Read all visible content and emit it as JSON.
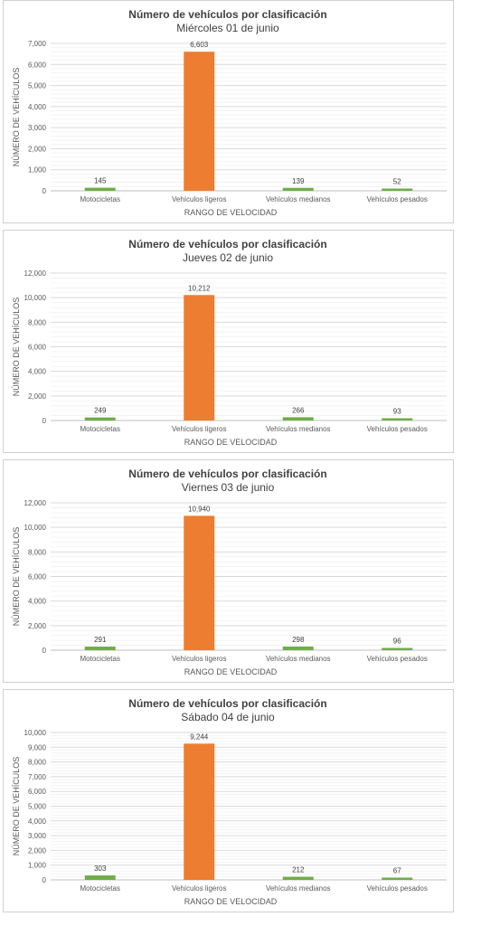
{
  "chart_data": [
    {
      "type": "bar",
      "title": "Número de vehículos por clasificación",
      "subtitle": "Miércoles 01 de junio",
      "xlabel": "RANGO DE VELOCIDAD",
      "ylabel": "NÚMERO DE VEHÍCULOS",
      "categories": [
        "Motocicletas",
        "Vehículos ligeros",
        "Vehículos medianos",
        "Vehículos pesados"
      ],
      "values": [
        145,
        6603,
        139,
        52
      ],
      "value_labels": [
        "145",
        "6,603",
        "139",
        "52"
      ],
      "colors": [
        "#70ad47",
        "#ed7d31",
        "#70ad47",
        "#70ad47"
      ],
      "ylim": [
        0,
        7000
      ],
      "yticks": [
        0,
        1000,
        2000,
        3000,
        4000,
        5000,
        6000,
        7000
      ],
      "ytick_labels": [
        "0",
        "1,000",
        "2,000",
        "3,000",
        "4,000",
        "5,000",
        "6,000",
        "7,000"
      ],
      "grid": true,
      "legend": "none"
    },
    {
      "type": "bar",
      "title": "Número de vehículos por clasificación",
      "subtitle": "Jueves 02 de junio",
      "xlabel": "RANGO DE VELOCIDAD",
      "ylabel": "NÚMERO DE VEHÍCULOS",
      "categories": [
        "Motocicletas",
        "Vehículos ligeros",
        "Vehículos medianos",
        "Vehículos pesados"
      ],
      "values": [
        249,
        10212,
        266,
        93
      ],
      "value_labels": [
        "249",
        "10,212",
        "266",
        "93"
      ],
      "colors": [
        "#70ad47",
        "#ed7d31",
        "#70ad47",
        "#70ad47"
      ],
      "ylim": [
        0,
        12000
      ],
      "yticks": [
        0,
        2000,
        4000,
        6000,
        8000,
        10000,
        12000
      ],
      "ytick_labels": [
        "0",
        "2,000",
        "4,000",
        "6,000",
        "8,000",
        "10,000",
        "12,000"
      ],
      "grid": true,
      "legend": "none"
    },
    {
      "type": "bar",
      "title": "Número de vehículos por clasificación",
      "subtitle": "Viernes 03 de junio",
      "xlabel": "RANGO DE VELOCIDAD",
      "ylabel": "NÚMERO DE VEHÍCULOS",
      "categories": [
        "Motocicletas",
        "Vehículos ligeros",
        "Vehículos medianos",
        "Vehículos pesados"
      ],
      "values": [
        291,
        10940,
        298,
        96
      ],
      "value_labels": [
        "291",
        "10,940",
        "298",
        "96"
      ],
      "colors": [
        "#70ad47",
        "#ed7d31",
        "#70ad47",
        "#70ad47"
      ],
      "ylim": [
        0,
        12000
      ],
      "yticks": [
        0,
        2000,
        4000,
        6000,
        8000,
        10000,
        12000
      ],
      "ytick_labels": [
        "0",
        "2,000",
        "4,000",
        "6,000",
        "8,000",
        "10,000",
        "12,000"
      ],
      "grid": true,
      "legend": "none"
    },
    {
      "type": "bar",
      "title": "Número de vehículos por clasificación",
      "subtitle": "Sábado 04 de junio",
      "xlabel": "RANGO DE VELOCIDAD",
      "ylabel": "NÚMERO DE VEHÍCULOS",
      "categories": [
        "Motocicletas",
        "Vehículos ligeros",
        "Vehículos medianos",
        "Vehículos pesados"
      ],
      "values": [
        303,
        9244,
        212,
        67
      ],
      "value_labels": [
        "303",
        "9,244",
        "212",
        "67"
      ],
      "colors": [
        "#70ad47",
        "#ed7d31",
        "#70ad47",
        "#70ad47"
      ],
      "ylim": [
        0,
        10000
      ],
      "yticks": [
        0,
        1000,
        2000,
        3000,
        4000,
        5000,
        6000,
        7000,
        8000,
        9000,
        10000
      ],
      "ytick_labels": [
        "0",
        "1,000",
        "2,000",
        "3,000",
        "4,000",
        "5,000",
        "6,000",
        "7,000",
        "8,000",
        "9,000",
        "10,000"
      ],
      "grid": true,
      "legend": "none"
    }
  ]
}
